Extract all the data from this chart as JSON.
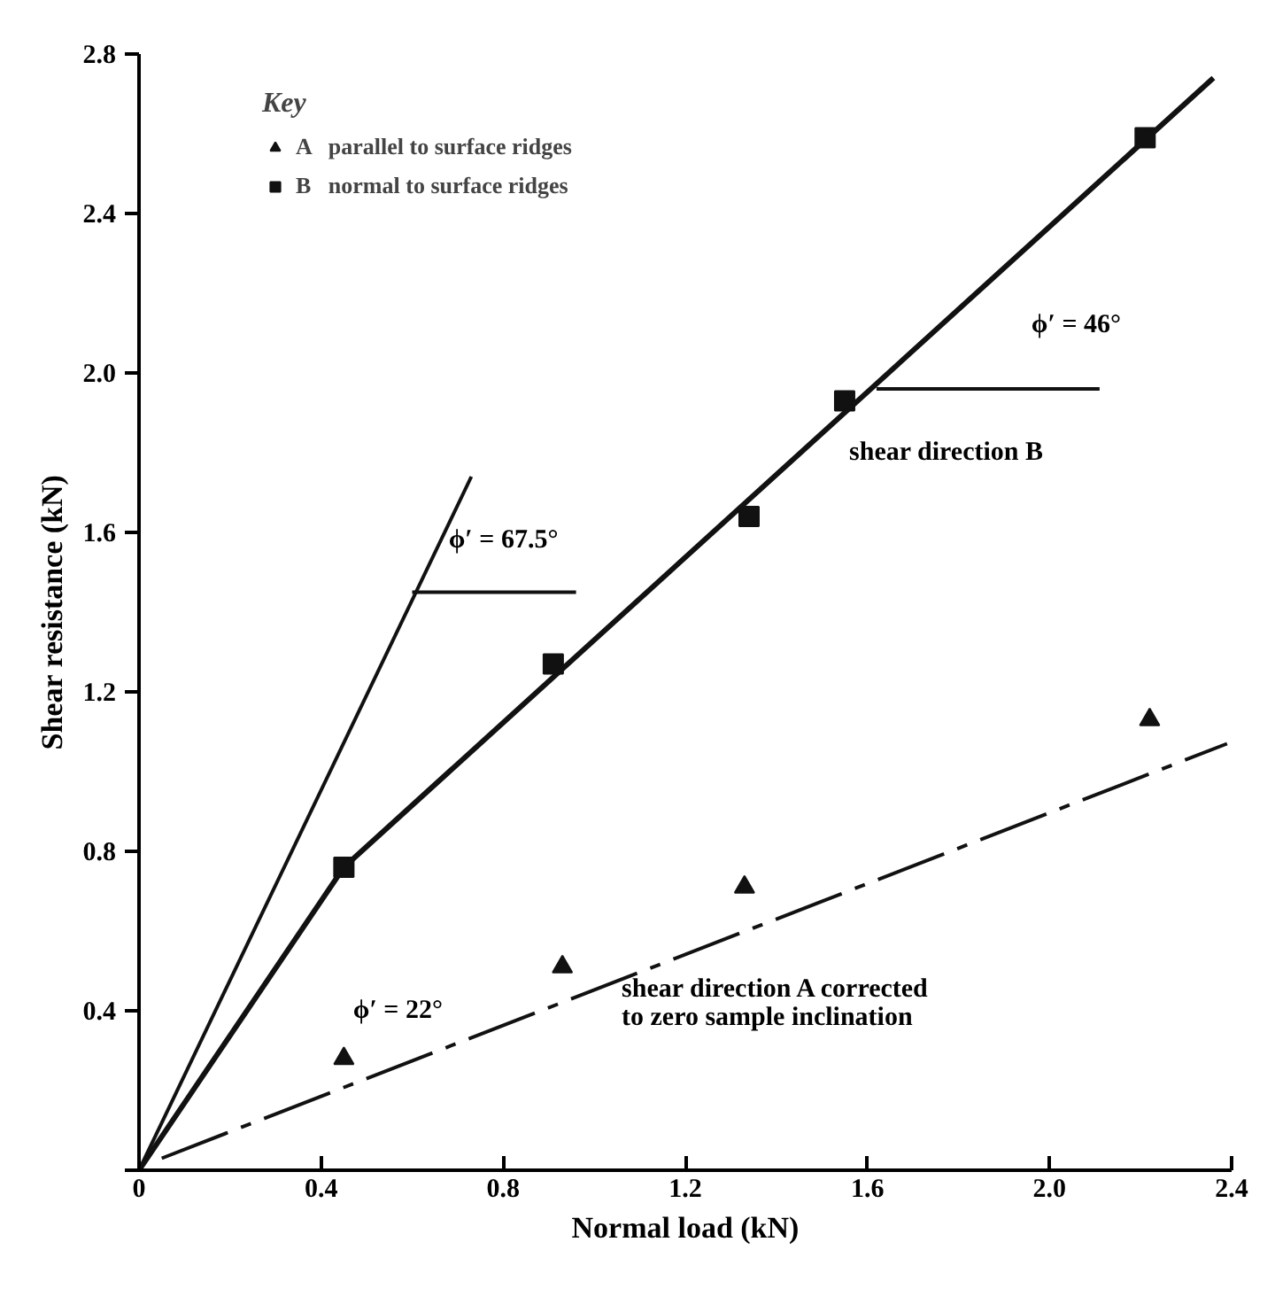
{
  "chart_data": {
    "type": "scatter",
    "xlabel": "Normal load (kN)",
    "ylabel": "Shear resistance (kN)",
    "legend_title": "Key",
    "legend": "top left",
    "grid": false,
    "xlim": [
      0,
      2.4
    ],
    "xticks": [
      0,
      0.4,
      0.8,
      1.2,
      1.6,
      {
        "value": 2,
        "label": "2.0"
      },
      2.4
    ],
    "ylim": [
      0,
      2.8
    ],
    "yticks": [
      {
        "value": 0,
        "label": null
      },
      0.4,
      0.8,
      1.2,
      1.6,
      {
        "value": 2,
        "label": "2.0"
      },
      2.4,
      2.8
    ],
    "series": [
      {
        "name": "A   parallel to surface ridges",
        "marker": "triangle",
        "color": "#111111",
        "x": [
          0.45,
          0.93,
          1.33,
          2.22
        ],
        "values": [
          0.28,
          0.51,
          0.71,
          1.13
        ]
      },
      {
        "name": "B   normal to surface ridges",
        "marker": "square",
        "color": "#111111",
        "x": [
          0.45,
          0.91,
          1.34,
          1.55,
          2.21
        ],
        "values": [
          0.76,
          1.27,
          1.64,
          1.93,
          2.59
        ]
      },
      {
        "type": "line",
        "line_style": "solid",
        "color": "#111111",
        "x": [
          0,
          0.45,
          2.36
        ],
        "values": [
          0,
          0.76,
          2.74
        ]
      },
      {
        "type": "line",
        "line_style": "solid",
        "color": "#111111",
        "x": [
          0,
          0.73
        ],
        "values": [
          0,
          1.74
        ]
      },
      {
        "type": "line",
        "line_style": "dashed",
        "color": "#111111",
        "x": [
          0.05,
          2.39
        ],
        "values": [
          0.03,
          1.07
        ]
      },
      {
        "type": "line",
        "line_style": "solid",
        "color": "#111111",
        "x": [
          0.6,
          0.96
        ],
        "values": [
          1.45,
          1.45
        ]
      },
      {
        "type": "line",
        "line_style": "solid",
        "color": "#111111",
        "x": [
          1.62,
          2.11
        ],
        "values": [
          1.96,
          1.96
        ]
      }
    ],
    "annotations": [
      "ϕ′ = 67.5°",
      "ϕ′ = 46°",
      "shear direction B",
      "ϕ′ = 22°",
      "shear direction A corrected\nto zero sample inclination"
    ]
  }
}
